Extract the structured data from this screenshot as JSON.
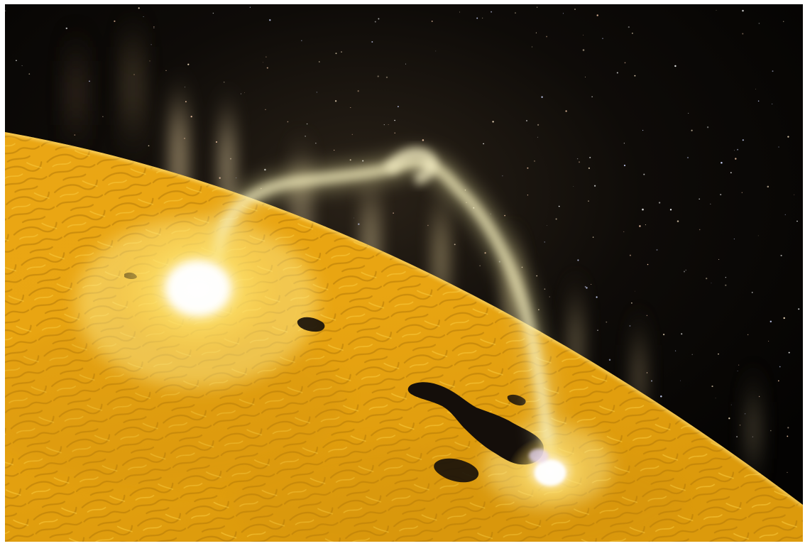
{
  "image": {
    "subject": "solar-flare-over-sun-surface",
    "elements": {
      "space": "starfield",
      "surface": "sun-photosphere",
      "prominence": "magnetic-loop",
      "flares": [
        "left-flare-footpoint",
        "right-flare-footpoint"
      ],
      "sunspots": [
        "sunspot-small-upper",
        "sunspot-group-large",
        "sunspot-lower",
        "sunspot-tiny-right"
      ]
    }
  },
  "colors": {
    "space": "#050403",
    "surface_base": "#e8a412",
    "surface_highlight": "#f7c232",
    "surface_shadow": "#b87a06",
    "prominence": "#f3ecb0",
    "flare_core": "#ffffff",
    "sunspot": "#140e0a"
  }
}
